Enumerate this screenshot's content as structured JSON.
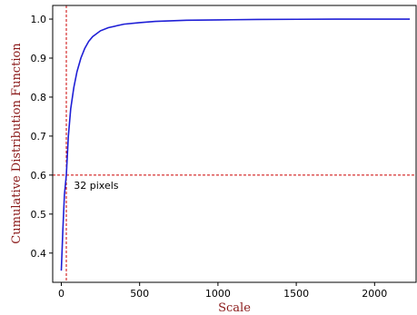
{
  "chart_data": {
    "type": "line",
    "xlabel": "Scale",
    "ylabel": "Cumulative Distribution Function",
    "xlim": [
      -55,
      2265
    ],
    "ylim": [
      0.325,
      1.035
    ],
    "xticks": [
      0,
      500,
      1000,
      1500,
      2000
    ],
    "yticks": [
      0.4,
      0.5,
      0.6,
      0.7,
      0.8,
      0.9,
      1.0
    ],
    "xtick_labels": [
      "0",
      "500",
      "1000",
      "1500",
      "2000"
    ],
    "ytick_labels": [
      "0.4",
      "0.5",
      "0.6",
      "0.7",
      "0.8",
      "0.9",
      "1.0"
    ],
    "grid": false,
    "series": [
      {
        "color": "#1f1fd6",
        "x": [
          0,
          10,
          20,
          32,
          45,
          60,
          80,
          100,
          125,
          150,
          175,
          200,
          250,
          300,
          400,
          500,
          600,
          800,
          1000,
          1250,
          1500,
          1750,
          2000,
          2225
        ],
        "y": [
          0.355,
          0.46,
          0.55,
          0.6,
          0.7,
          0.77,
          0.825,
          0.865,
          0.9,
          0.925,
          0.943,
          0.955,
          0.97,
          0.978,
          0.987,
          0.991,
          0.994,
          0.997,
          0.998,
          0.999,
          0.9995,
          1.0,
          1.0,
          1.0
        ]
      }
    ],
    "reference_lines": {
      "color": "#cc0000",
      "vertical_x": 32,
      "horizontal_y": 0.6
    },
    "annotations": [
      {
        "text": "32 pixels",
        "x": 80,
        "y": 0.565
      }
    ],
    "label_color": "#8b1a1a"
  }
}
